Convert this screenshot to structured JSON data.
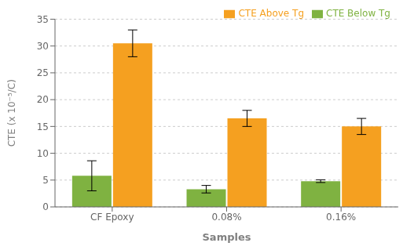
{
  "chart_data": {
    "type": "bar",
    "categories": [
      "CF Epoxy",
      "0.08%",
      "0.16%"
    ],
    "series": [
      {
        "name": "CTE Below Tg",
        "color": "#7fb241",
        "values": [
          5.8,
          3.3,
          4.8
        ],
        "error": [
          2.8,
          0.7,
          0.25
        ]
      },
      {
        "name": "CTE Above Tg",
        "color": "#f5a020",
        "values": [
          30.5,
          16.5,
          15.0
        ],
        "error": [
          2.5,
          1.5,
          1.5
        ]
      }
    ],
    "xlabel": "Samples",
    "ylabel": "CTE (x 10⁻⁵/C)",
    "ylim": [
      0,
      35
    ],
    "yticks": [
      0,
      5,
      10,
      15,
      20,
      25,
      30,
      35
    ],
    "grid": true,
    "legend": "upper right"
  }
}
